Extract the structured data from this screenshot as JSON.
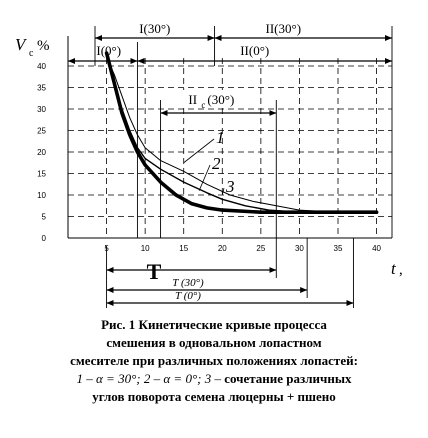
{
  "chart_data": {
    "type": "line",
    "ylabel_main": "V",
    "ylabel_sub": "c",
    "ylabel_unit": "%",
    "xlabel": "t",
    "xlabel_unit": ",",
    "xlim": [
      0,
      42
    ],
    "ylim": [
      0,
      40
    ],
    "x_ticks": [
      5,
      10,
      15,
      20,
      25,
      30,
      35,
      40
    ],
    "y_ticks": [
      0,
      5,
      10,
      15,
      20,
      25,
      30,
      35,
      40
    ],
    "grid": true,
    "series": [
      {
        "name": "1",
        "values": [
          [
            5.5,
            40
          ],
          [
            6,
            38
          ],
          [
            7,
            33
          ],
          [
            8,
            28
          ],
          [
            9,
            24
          ],
          [
            10,
            21
          ],
          [
            12,
            18
          ],
          [
            15,
            15.5
          ],
          [
            18,
            12.5
          ],
          [
            21,
            10
          ],
          [
            24,
            8.5
          ],
          [
            27,
            7.5
          ],
          [
            30,
            6.5
          ],
          [
            35,
            6
          ],
          [
            40,
            6
          ]
        ]
      },
      {
        "name": "2",
        "values": [
          [
            5.5,
            40
          ],
          [
            6,
            36
          ],
          [
            7,
            30
          ],
          [
            8,
            25
          ],
          [
            9,
            21
          ],
          [
            10,
            18.5
          ],
          [
            12,
            16
          ],
          [
            15,
            13
          ],
          [
            18,
            10.5
          ],
          [
            20,
            9
          ],
          [
            23,
            7.5
          ],
          [
            26,
            6.5
          ],
          [
            30,
            6
          ],
          [
            35,
            6
          ],
          [
            40,
            6
          ]
        ]
      },
      {
        "name": "3",
        "values": [
          [
            5,
            43
          ],
          [
            6,
            36
          ],
          [
            7,
            29
          ],
          [
            8,
            24
          ],
          [
            9,
            20
          ],
          [
            10,
            17
          ],
          [
            12,
            13
          ],
          [
            14,
            10
          ],
          [
            16,
            8
          ],
          [
            18,
            7
          ],
          [
            20,
            6.5
          ],
          [
            25,
            6
          ],
          [
            30,
            6
          ],
          [
            35,
            6
          ],
          [
            40,
            6
          ]
        ]
      }
    ],
    "annotations": {
      "top_ranges": [
        {
          "label": "I(30°)",
          "from": 3.5,
          "to": 19
        },
        {
          "label": "II(30°)",
          "from": 19,
          "to": 42
        },
        {
          "label": "I(0°)",
          "from": 0,
          "to": 9
        },
        {
          "label": "II(0°)",
          "from": 9,
          "to": 42
        },
        {
          "label": "II",
          "sub": "c",
          "tail": "(30°)",
          "from": 12,
          "to": 27
        }
      ],
      "bottom_ranges": [
        {
          "label": "T",
          "from": 5,
          "to": 27
        },
        {
          "label": "T (30°)",
          "from": 5,
          "to": 31
        },
        {
          "label": "T (0°)",
          "from": 5,
          "to": 37
        }
      ]
    }
  },
  "caption": {
    "line1": "Рис. 1  Кинетические кривые процесса",
    "line2": "смешения в одновальном лопастном",
    "line3": "смесителе при различных положениях лопастей:",
    "line4a": "1 –  α = 30°; 2 – α = 0°; 3 –",
    "line4b": " сочетание различных",
    "line5": "углов поворота семена люцерны + пшено"
  }
}
